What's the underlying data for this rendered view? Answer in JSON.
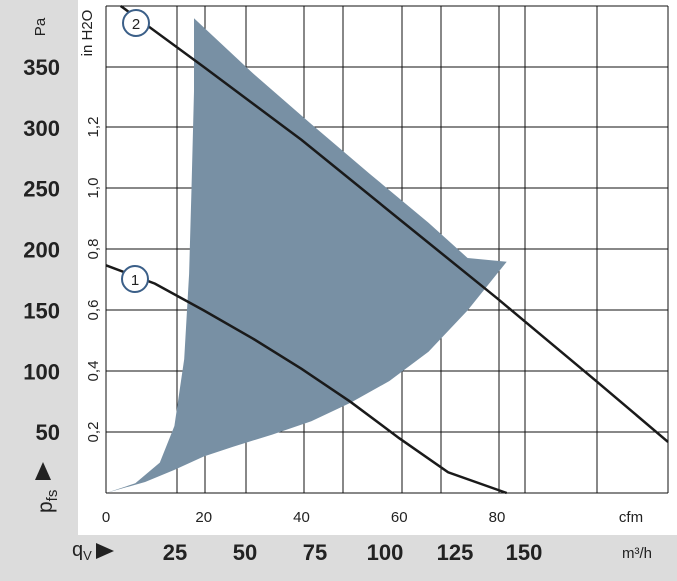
{
  "chart_data": {
    "type": "area",
    "pressure_axis_pa": {
      "unit": "Pa",
      "ticks": [
        50,
        100,
        150,
        200,
        250,
        300,
        350
      ],
      "range": [
        0,
        400
      ]
    },
    "pressure_axis_inh2o": {
      "unit": "in H2O",
      "ticks": [
        "0,2",
        "0,4",
        "0,6",
        "0,8",
        "1,0",
        "1,2"
      ]
    },
    "flow_axis_cfm": {
      "unit": "cfm",
      "ticks": [
        "0",
        "20",
        "40",
        "60",
        "80"
      ],
      "tick_values": [
        0,
        20,
        40,
        60,
        80
      ],
      "range": [
        0,
        115
      ]
    },
    "flow_axis_m3h": {
      "unit": "m³/h",
      "ticks": [
        "25",
        "50",
        "75",
        "100",
        "125",
        "150"
      ]
    },
    "pfs_label": "p",
    "pfs_subscript": "fs",
    "qv_label": "q",
    "qv_subscript": "V",
    "operating_area": {
      "upper_edge": [
        [
          18,
          390
        ],
        [
          30,
          345
        ],
        [
          42,
          303
        ],
        [
          54,
          262
        ],
        [
          66,
          222
        ],
        [
          74,
          193
        ],
        [
          82,
          190
        ]
      ],
      "lower_edge": [
        [
          82,
          190
        ],
        [
          74,
          150
        ],
        [
          66,
          116
        ],
        [
          58,
          92
        ],
        [
          50,
          74
        ],
        [
          42,
          59
        ],
        [
          34,
          48
        ],
        [
          26,
          38
        ],
        [
          20,
          30
        ],
        [
          14,
          19
        ],
        [
          8,
          9
        ],
        [
          0,
          0
        ]
      ],
      "left_edge": [
        [
          0,
          0
        ],
        [
          6,
          8
        ],
        [
          11,
          25
        ],
        [
          14,
          55
        ],
        [
          16,
          110
        ],
        [
          17,
          180
        ],
        [
          17.5,
          250
        ],
        [
          18,
          330
        ],
        [
          18,
          390
        ]
      ]
    },
    "series": [
      {
        "name": "1",
        "points": [
          [
            0,
            187
          ],
          [
            10,
            172
          ],
          [
            20,
            150
          ],
          [
            30,
            127
          ],
          [
            40,
            102
          ],
          [
            50,
            75
          ],
          [
            60,
            45
          ],
          [
            70,
            17
          ],
          [
            82,
            0
          ]
        ]
      },
      {
        "name": "2",
        "points": [
          [
            3,
            400
          ],
          [
            20,
            350
          ],
          [
            40,
            290
          ],
          [
            60,
            225
          ],
          [
            80,
            160
          ],
          [
            100,
            93
          ],
          [
            115,
            42
          ]
        ]
      }
    ],
    "grid": true
  }
}
